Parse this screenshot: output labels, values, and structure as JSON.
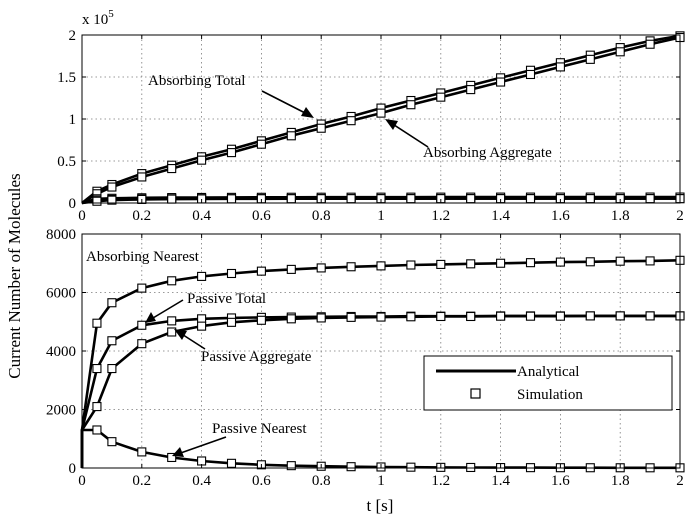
{
  "chart_data": [
    {
      "type": "line",
      "panel": "top",
      "exponent_label": "x 10",
      "exponent_power": "5",
      "xlim": [
        0,
        2
      ],
      "ylim": [
        0,
        200000
      ],
      "x_ticks": [
        0,
        0.2,
        0.4,
        0.6,
        0.8,
        1,
        1.2,
        1.4,
        1.6,
        1.8,
        2
      ],
      "x_tick_labels": [
        "0",
        "0.2",
        "0.4",
        "0.6",
        "0.8",
        "1",
        "1.2",
        "1.4",
        "1.6",
        "1.8",
        "2"
      ],
      "y_ticks": [
        0,
        50000,
        100000,
        150000,
        200000
      ],
      "y_tick_labels": [
        "0",
        "0.5",
        "1",
        "1.5",
        "2"
      ],
      "grid": true,
      "series": [
        {
          "name": "Absorbing Total",
          "x": [
            0,
            0.05,
            0.1,
            0.2,
            0.3,
            0.4,
            0.5,
            0.6,
            0.7,
            0.8,
            0.9,
            1,
            1.1,
            1.2,
            1.3,
            1.4,
            1.5,
            1.6,
            1.7,
            1.8,
            1.9,
            2
          ],
          "y": [
            0,
            14000,
            22000,
            35000,
            45000,
            55000,
            64000,
            74000,
            84000,
            94000,
            103000,
            113000,
            122000,
            131000,
            140000,
            149000,
            158000,
            167000,
            176000,
            185000,
            193000,
            199000
          ]
        },
        {
          "name": "Absorbing Aggregate",
          "x": [
            0,
            0.05,
            0.1,
            0.2,
            0.3,
            0.4,
            0.5,
            0.6,
            0.7,
            0.8,
            0.9,
            1,
            1.1,
            1.2,
            1.3,
            1.4,
            1.5,
            1.6,
            1.7,
            1.8,
            1.9,
            2
          ],
          "y": [
            0,
            11000,
            19000,
            31000,
            41000,
            51000,
            60000,
            70000,
            80000,
            89000,
            98000,
            107000,
            117000,
            126000,
            135000,
            144000,
            153000,
            162000,
            171000,
            180000,
            189000,
            197000
          ]
        },
        {
          "name": "Absorbing Nearest",
          "x": [
            0,
            0.05,
            0.1,
            0.2,
            0.3,
            0.4,
            0.5,
            0.6,
            0.7,
            0.8,
            0.9,
            1,
            1.1,
            1.2,
            1.3,
            1.4,
            1.5,
            1.6,
            1.7,
            1.8,
            1.9,
            2
          ],
          "y": [
            0,
            5000,
            5600,
            6200,
            6450,
            6600,
            6700,
            6780,
            6830,
            6870,
            6910,
            6940,
            6960,
            6980,
            7000,
            7020,
            7040,
            7050,
            7060,
            7080,
            7090,
            7100
          ]
        },
        {
          "name": "Passive Total",
          "x": [
            0,
            0.05,
            0.1,
            0.2,
            0.3,
            0.4,
            0.5,
            0.6,
            0.7,
            0.8,
            0.9,
            1,
            1.1,
            1.2,
            1.3,
            1.4,
            1.5,
            1.6,
            1.7,
            1.8,
            1.9,
            2
          ],
          "y": [
            0,
            3400,
            4300,
            4850,
            5000,
            5080,
            5120,
            5150,
            5160,
            5170,
            5180,
            5180,
            5190,
            5190,
            5190,
            5190,
            5200,
            5200,
            5200,
            5200,
            5200,
            5200
          ]
        },
        {
          "name": "Passive Aggregate",
          "x": [
            0,
            0.05,
            0.1,
            0.2,
            0.3,
            0.4,
            0.5,
            0.6,
            0.7,
            0.8,
            0.9,
            1,
            1.1,
            1.2,
            1.3,
            1.4,
            1.5,
            1.6,
            1.7,
            1.8,
            1.9,
            2
          ],
          "y": [
            0,
            2100,
            3400,
            4250,
            4650,
            4850,
            4980,
            5050,
            5100,
            5130,
            5150,
            5160,
            5170,
            5180,
            5180,
            5190,
            5190,
            5190,
            5200,
            5200,
            5200,
            5200
          ]
        }
      ]
    },
    {
      "type": "line",
      "panel": "bottom",
      "xlabel": "t [s]",
      "xlim": [
        0,
        2
      ],
      "ylim": [
        0,
        8000
      ],
      "x_ticks": [
        0,
        0.2,
        0.4,
        0.6,
        0.8,
        1,
        1.2,
        1.4,
        1.6,
        1.8,
        2
      ],
      "x_tick_labels": [
        "0",
        "0.2",
        "0.4",
        "0.6",
        "0.8",
        "1",
        "1.2",
        "1.4",
        "1.6",
        "1.8",
        "2"
      ],
      "y_ticks": [
        0,
        2000,
        4000,
        6000,
        8000
      ],
      "y_tick_labels": [
        "0",
        "2000",
        "4000",
        "6000",
        "8000"
      ],
      "grid": true,
      "legend_position": "lower-right",
      "series": [
        {
          "name": "Absorbing Nearest",
          "x": [
            0.05,
            0.1,
            0.2,
            0.3,
            0.4,
            0.5,
            0.6,
            0.7,
            0.8,
            0.9,
            1,
            1.1,
            1.2,
            1.3,
            1.4,
            1.5,
            1.6,
            1.7,
            1.8,
            1.9,
            2
          ],
          "y": [
            4950,
            5650,
            6150,
            6400,
            6550,
            6650,
            6730,
            6790,
            6840,
            6880,
            6910,
            6940,
            6960,
            6980,
            7000,
            7020,
            7040,
            7050,
            7070,
            7080,
            7100
          ]
        },
        {
          "name": "Passive Total",
          "x": [
            0.05,
            0.1,
            0.2,
            0.3,
            0.4,
            0.5,
            0.6,
            0.7,
            0.8,
            0.9,
            1,
            1.1,
            1.2,
            1.3,
            1.4,
            1.5,
            1.6,
            1.7,
            1.8,
            1.9,
            2
          ],
          "y": [
            3400,
            4350,
            4880,
            5030,
            5100,
            5130,
            5150,
            5160,
            5170,
            5180,
            5180,
            5190,
            5190,
            5190,
            5200,
            5200,
            5200,
            5200,
            5200,
            5200,
            5200
          ]
        },
        {
          "name": "Passive Aggregate",
          "x": [
            0.05,
            0.1,
            0.2,
            0.3,
            0.4,
            0.5,
            0.6,
            0.7,
            0.8,
            0.9,
            1,
            1.1,
            1.2,
            1.3,
            1.4,
            1.5,
            1.6,
            1.7,
            1.8,
            1.9,
            2
          ],
          "y": [
            2100,
            3400,
            4250,
            4650,
            4850,
            4980,
            5050,
            5100,
            5130,
            5150,
            5160,
            5170,
            5180,
            5180,
            5190,
            5190,
            5190,
            5200,
            5200,
            5200,
            5200
          ]
        },
        {
          "name": "Passive Nearest",
          "x": [
            0.05,
            0.1,
            0.2,
            0.3,
            0.4,
            0.5,
            0.6,
            0.7,
            0.8,
            0.9,
            1,
            1.1,
            1.2,
            1.3,
            1.4,
            1.5,
            1.6,
            1.7,
            1.8,
            1.9,
            2
          ],
          "y": [
            1300,
            900,
            550,
            360,
            240,
            160,
            110,
            80,
            60,
            45,
            35,
            28,
            22,
            18,
            15,
            12,
            10,
            9,
            8,
            7,
            6
          ]
        }
      ]
    }
  ],
  "ylabel": "Current Number of  Molecules",
  "legend": {
    "analytical_label": "Analytical",
    "simulation_label": "Simulation"
  },
  "annotations": {
    "absorbing_total": "Absorbing Total",
    "absorbing_aggregate": "Absorbing Aggregate",
    "absorbing_nearest": "Absorbing Nearest",
    "passive_total": "Passive Total",
    "passive_aggregate": "Passive Aggregate",
    "passive_nearest": "Passive Nearest"
  }
}
